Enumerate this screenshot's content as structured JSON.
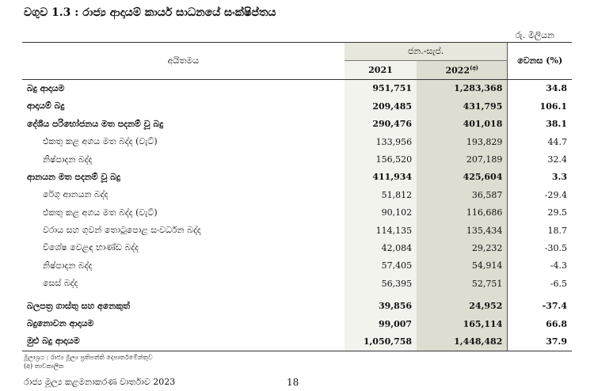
{
  "title": "වගුව 1.3 :  රාජ්‍ය ආදායම් කාර්ය සාධනයේ සංක්ෂිප්තය",
  "unit": "රු. මිලියන",
  "header": {
    "item_label": "අයිතමය",
    "period": "ජන.-සැප්.",
    "year1": "2021",
    "year2": "2022",
    "year2_note": "(අ)",
    "change": "වෙනස (%)"
  },
  "rows": [
    {
      "label": "බදු ආදායම",
      "y2021": "951,751",
      "y2022": "1,283,368",
      "change": "34.8",
      "bold": true,
      "indent": false
    },
    {
      "label": "ආදායම් බදු",
      "y2021": "209,485",
      "y2022": "431,795",
      "change": "106.1",
      "bold": true,
      "indent": false
    },
    {
      "label": "දේශීය පරිභෝජනය මත පදනම් වූ බදු",
      "y2021": "290,476",
      "y2022": "401,018",
      "change": "38.1",
      "bold": true,
      "indent": false
    },
    {
      "label": "එකතු කළ අගය මත බද්ද (වැට්)",
      "y2021": "133,956",
      "y2022": "193,829",
      "change": "44.7",
      "bold": false,
      "indent": true
    },
    {
      "label": "නිෂ්පාදන බද්ද",
      "y2021": "156,520",
      "y2022": "207,189",
      "change": "32.4",
      "bold": false,
      "indent": true
    },
    {
      "label": "ආනයන මත පදනම් වූ බදු",
      "y2021": "411,934",
      "y2022": "425,604",
      "change": "3.3",
      "bold": true,
      "indent": false
    },
    {
      "label": "රේගු ආනයන බද්ද",
      "y2021": "51,812",
      "y2022": "36,587",
      "change": "-29.4",
      "bold": false,
      "indent": true
    },
    {
      "label": "එකතු කළ අගය මත බද්ද (වැට්)",
      "y2021": "90,102",
      "y2022": "116,686",
      "change": "29.5",
      "bold": false,
      "indent": true
    },
    {
      "label": "වරාය සහ ගුවන් තොටුපොළ සංවර්ධන බද්ද",
      "y2021": "114,135",
      "y2022": "135,434",
      "change": "18.7",
      "bold": false,
      "indent": true
    },
    {
      "label": "විශේෂ වෙළඳ භාණ්ඩ බද්ද",
      "y2021": "42,084",
      "y2022": "29,232",
      "change": "-30.5",
      "bold": false,
      "indent": true
    },
    {
      "label": "නිෂ්පාදන බද්ද",
      "y2021": "57,405",
      "y2022": "54,914",
      "change": "-4.3",
      "bold": false,
      "indent": true
    },
    {
      "label": "සෙස් බද්ද",
      "y2021": "56,395",
      "y2022": "52,751",
      "change": "-6.5",
      "bold": false,
      "indent": true
    },
    {
      "label": "බලපත්‍ර ගාස්තු සහ අනෙකුත්",
      "y2021": "39,856",
      "y2022": "24,952",
      "change": "-37.4",
      "bold": true,
      "indent": false,
      "gap_before": true
    },
    {
      "label": "බදුනොවන ආදායම",
      "y2021": "99,007",
      "y2022": "165,114",
      "change": "66.8",
      "bold": true,
      "indent": false
    },
    {
      "label": "මුළු බදු ආදායම",
      "y2021": "1,050,758",
      "y2022": "1,448,482",
      "change": "37.9",
      "bold": true,
      "indent": false,
      "last": true
    }
  ],
  "footnotes": {
    "source": "මූලාශ්‍රය : රාජ්‍ය මූල්‍ය ප්‍රතිපත්ති දෙපාර්තමේන්තුව",
    "provisional": "(අ) තාවකාලික"
  },
  "footer": {
    "report": "රාජ්‍ය මූල්‍ය කළමනාකරණ වාර්තාව 2023",
    "page": "18"
  }
}
